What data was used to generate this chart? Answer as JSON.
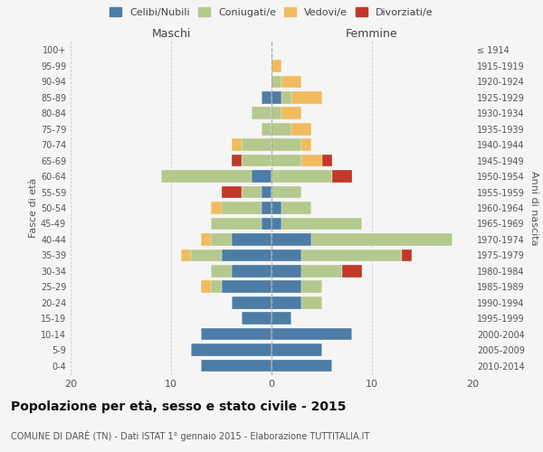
{
  "age_groups": [
    "0-4",
    "5-9",
    "10-14",
    "15-19",
    "20-24",
    "25-29",
    "30-34",
    "35-39",
    "40-44",
    "45-49",
    "50-54",
    "55-59",
    "60-64",
    "65-69",
    "70-74",
    "75-79",
    "80-84",
    "85-89",
    "90-94",
    "95-99",
    "100+"
  ],
  "birth_years": [
    "2010-2014",
    "2005-2009",
    "2000-2004",
    "1995-1999",
    "1990-1994",
    "1985-1989",
    "1980-1984",
    "1975-1979",
    "1970-1974",
    "1965-1969",
    "1960-1964",
    "1955-1959",
    "1950-1954",
    "1945-1949",
    "1940-1944",
    "1935-1939",
    "1930-1934",
    "1925-1929",
    "1920-1924",
    "1915-1919",
    "≤ 1914"
  ],
  "males": {
    "celibi": [
      7,
      8,
      7,
      3,
      4,
      5,
      4,
      5,
      4,
      1,
      1,
      1,
      2,
      0,
      0,
      0,
      0,
      1,
      0,
      0,
      0
    ],
    "coniugati": [
      0,
      0,
      0,
      0,
      0,
      1,
      2,
      3,
      2,
      5,
      4,
      2,
      9,
      3,
      3,
      1,
      2,
      0,
      0,
      0,
      0
    ],
    "vedovi": [
      0,
      0,
      0,
      0,
      0,
      1,
      0,
      1,
      1,
      0,
      1,
      0,
      0,
      0,
      1,
      0,
      0,
      0,
      0,
      0,
      0
    ],
    "divorziati": [
      0,
      0,
      0,
      0,
      0,
      0,
      0,
      0,
      0,
      0,
      0,
      2,
      0,
      1,
      0,
      0,
      0,
      0,
      0,
      0,
      0
    ]
  },
  "females": {
    "nubili": [
      6,
      5,
      8,
      2,
      3,
      3,
      3,
      3,
      4,
      1,
      1,
      0,
      0,
      0,
      0,
      0,
      0,
      1,
      0,
      0,
      0
    ],
    "coniugate": [
      0,
      0,
      0,
      0,
      2,
      2,
      4,
      10,
      14,
      8,
      3,
      3,
      6,
      3,
      3,
      2,
      1,
      1,
      1,
      0,
      0
    ],
    "vedove": [
      0,
      0,
      0,
      0,
      0,
      0,
      0,
      0,
      0,
      0,
      0,
      0,
      0,
      2,
      1,
      2,
      2,
      3,
      2,
      1,
      0
    ],
    "divorziate": [
      0,
      0,
      0,
      0,
      0,
      0,
      2,
      1,
      0,
      0,
      0,
      0,
      2,
      1,
      0,
      0,
      0,
      0,
      0,
      0,
      0
    ]
  },
  "colors": {
    "celibi_nubili": "#4d7ca6",
    "coniugati": "#b5c98e",
    "vedovi": "#f0bc5e",
    "divorziati": "#c0392b"
  },
  "title": "Popolazione per età, sesso e stato civile - 2015",
  "subtitle": "COMUNE DI DARÈ (TN) - Dati ISTAT 1° gennaio 2015 - Elaborazione TUTTITALIA.IT",
  "xlabel_left": "Maschi",
  "xlabel_right": "Femmine",
  "ylabel_left": "Fasce di età",
  "ylabel_right": "Anni di nascita",
  "xlim": 20,
  "legend_labels": [
    "Celibi/Nubili",
    "Coniugati/e",
    "Vedovi/e",
    "Divorziati/e"
  ],
  "background_color": "#f5f5f5",
  "grid_color": "#cccccc"
}
